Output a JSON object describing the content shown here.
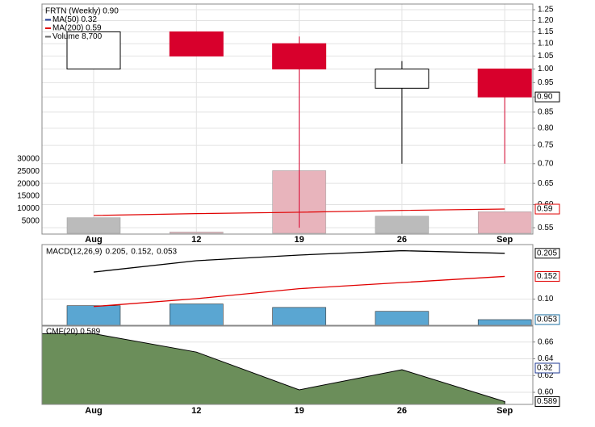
{
  "chart_data": [
    {
      "type": "candlestick",
      "legend": [
        {
          "text": "FRTN (Weekly) 0.90",
          "color": "#000000"
        },
        {
          "text": "MA(50) 0.32",
          "color": "#1f3a93"
        },
        {
          "text": "MA(200) 0.59",
          "color": "#e00000"
        },
        {
          "text": "Volume 8,700",
          "color": "#666666"
        }
      ],
      "categories": [
        "Aug",
        "12",
        "19",
        "26",
        "Sep"
      ],
      "open": [
        1.0,
        1.15,
        1.1,
        0.93,
        1.0
      ],
      "high": [
        1.15,
        1.15,
        1.13,
        1.03,
        1.0
      ],
      "low": [
        1.0,
        1.05,
        0.55,
        0.7,
        0.7
      ],
      "close": [
        1.15,
        1.05,
        1.0,
        1.0,
        0.9
      ],
      "close_label": "0.90",
      "up_color": "#ffffff",
      "down_color": "#d8002c",
      "ylim": [
        0.537,
        1.277
      ],
      "log_scale": true,
      "yticks": [
        1.25,
        {
          "value": 1.2,
          "label": "1.20"
        },
        1.15,
        {
          "value": 1.1,
          "label": "1.10"
        },
        1.05,
        {
          "value": 1.0,
          "label": "1.00"
        },
        0.95,
        {
          "value": 0.9,
          "label": "0.90"
        },
        0.85,
        {
          "value": 0.8,
          "label": "0.80"
        },
        0.75,
        {
          "value": 0.7,
          "label": "0.70"
        },
        0.65,
        {
          "value": 0.6,
          "label": "0.60"
        },
        0.55
      ],
      "ma200": {
        "name": "MA(200)",
        "color": "#e00000",
        "values": [
          0.576,
          0.58,
          0.583,
          0.587,
          0.59
        ],
        "last_label": "0.59"
      },
      "volume": {
        "values": [
          6300,
          500,
          25300,
          6900,
          8700
        ],
        "colors": [
          "#bbbbbb",
          "#e8b4bc",
          "#e8b4bc",
          "#bbbbbb",
          "#e8b4bc"
        ]
      },
      "y2lim": [
        0,
        30000
      ],
      "y2ticks": [
        5000,
        10000,
        15000,
        20000,
        25000,
        30000
      ],
      "grid": true
    },
    {
      "type": "macd",
      "legend": [
        {
          "text": "MACD(12,26,9)",
          "color": "#000000"
        },
        {
          "text": "0.205,",
          "color": "#000000"
        },
        {
          "text": "0.152,",
          "color": "#e00000"
        },
        {
          "text": "0.053",
          "color": "#3a9ad0"
        }
      ],
      "series": [
        {
          "name": "MACD",
          "color": "#000000",
          "values": [
            0.162,
            0.188,
            0.201,
            0.211,
            0.205
          ],
          "last_label": "0.205"
        },
        {
          "name": "Signal",
          "color": "#e00000",
          "values": [
            0.083,
            0.101,
            0.124,
            0.138,
            0.152
          ],
          "last_label": "0.152"
        }
      ],
      "histogram": {
        "color": "#5aa6d2",
        "values": [
          0.085,
          0.089,
          0.081,
          0.072,
          0.053
        ],
        "last_label": "0.053"
      },
      "ylim": [
        0.04,
        0.225
      ],
      "yticks": [
        {
          "value": 0.1,
          "label": "0.10"
        }
      ],
      "grid": true
    },
    {
      "type": "area",
      "legend": "CMF(20) 0.589",
      "values": [
        0.67,
        0.648,
        0.603,
        0.627,
        0.589
      ],
      "last_label": "0.589",
      "color": "#6b8e5a",
      "annotation": "0.32",
      "ylim": [
        0.5856,
        0.679
      ],
      "yticks": [
        0.66,
        0.64,
        0.62,
        {
          "value": 0.6,
          "label": "0.60"
        }
      ],
      "grid": true
    }
  ]
}
